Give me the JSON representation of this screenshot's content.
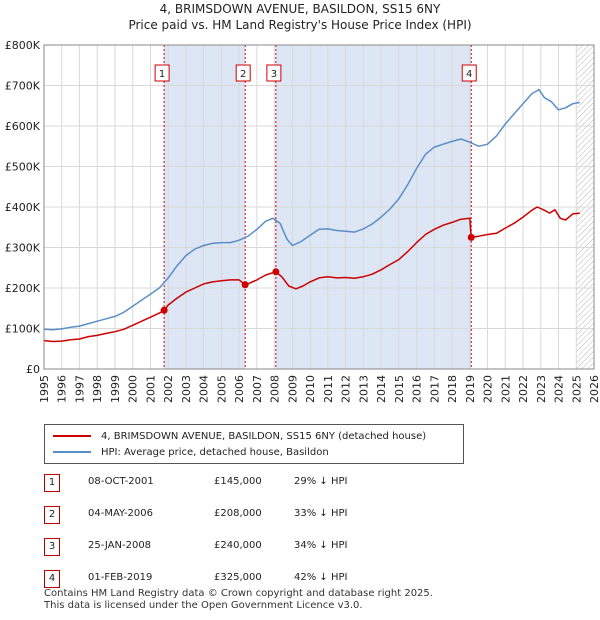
{
  "chart_data": {
    "type": "line",
    "title": "4, BRIMSDOWN AVENUE, BASILDON, SS15 6NY",
    "subtitle": "Price paid vs. HM Land Registry's House Price Index (HPI)",
    "xlabel": "",
    "ylabel": "",
    "xlim": [
      1995,
      2026
    ],
    "ylim": [
      0,
      800000
    ],
    "y_ticks": [
      0,
      100000,
      200000,
      300000,
      400000,
      500000,
      600000,
      700000,
      800000
    ],
    "y_tick_labels": [
      "£0",
      "£100K",
      "£200K",
      "£300K",
      "£400K",
      "£500K",
      "£600K",
      "£700K",
      "£800K"
    ],
    "x_ticks": [
      1995,
      1996,
      1997,
      1998,
      1999,
      2000,
      2001,
      2002,
      2003,
      2004,
      2005,
      2006,
      2007,
      2008,
      2009,
      2010,
      2011,
      2012,
      2013,
      2014,
      2015,
      2016,
      2017,
      2018,
      2019,
      2020,
      2021,
      2022,
      2023,
      2024,
      2025,
      2026
    ],
    "grid": true,
    "hatch_after": 2025.0,
    "series": [
      {
        "name": "4, BRIMSDOWN AVENUE, BASILDON, SS15 6NY (detached house)",
        "color": "#cc0000",
        "points": [
          [
            1995.0,
            70000
          ],
          [
            1995.5,
            68000
          ],
          [
            1996.0,
            69000
          ],
          [
            1996.5,
            72000
          ],
          [
            1997.0,
            74000
          ],
          [
            1997.5,
            80000
          ],
          [
            1998.0,
            83000
          ],
          [
            1998.5,
            88000
          ],
          [
            1999.0,
            92000
          ],
          [
            1999.5,
            98000
          ],
          [
            2000.0,
            108000
          ],
          [
            2000.5,
            118000
          ],
          [
            2001.0,
            128000
          ],
          [
            2001.5,
            138000
          ],
          [
            2001.77,
            145000
          ],
          [
            2002.0,
            158000
          ],
          [
            2002.5,
            175000
          ],
          [
            2003.0,
            190000
          ],
          [
            2003.5,
            200000
          ],
          [
            2004.0,
            210000
          ],
          [
            2004.5,
            215000
          ],
          [
            2005.0,
            218000
          ],
          [
            2005.5,
            220000
          ],
          [
            2006.0,
            220000
          ],
          [
            2006.34,
            208000
          ],
          [
            2006.6,
            212000
          ],
          [
            2007.0,
            220000
          ],
          [
            2007.5,
            232000
          ],
          [
            2008.07,
            240000
          ],
          [
            2008.4,
            228000
          ],
          [
            2008.8,
            205000
          ],
          [
            2009.2,
            198000
          ],
          [
            2009.6,
            205000
          ],
          [
            2010.0,
            215000
          ],
          [
            2010.5,
            225000
          ],
          [
            2011.0,
            228000
          ],
          [
            2011.5,
            225000
          ],
          [
            2012.0,
            226000
          ],
          [
            2012.5,
            224000
          ],
          [
            2013.0,
            228000
          ],
          [
            2013.5,
            234000
          ],
          [
            2014.0,
            245000
          ],
          [
            2014.5,
            258000
          ],
          [
            2015.0,
            270000
          ],
          [
            2015.5,
            290000
          ],
          [
            2016.0,
            312000
          ],
          [
            2016.5,
            332000
          ],
          [
            2017.0,
            345000
          ],
          [
            2017.5,
            355000
          ],
          [
            2018.0,
            362000
          ],
          [
            2018.5,
            370000
          ],
          [
            2019.0,
            372000
          ],
          [
            2019.08,
            325000
          ],
          [
            2019.5,
            328000
          ],
          [
            2020.0,
            332000
          ],
          [
            2020.5,
            335000
          ],
          [
            2021.0,
            348000
          ],
          [
            2021.5,
            360000
          ],
          [
            2022.0,
            375000
          ],
          [
            2022.5,
            392000
          ],
          [
            2022.8,
            400000
          ],
          [
            2023.2,
            392000
          ],
          [
            2023.5,
            385000
          ],
          [
            2023.8,
            393000
          ],
          [
            2024.1,
            372000
          ],
          [
            2024.4,
            368000
          ],
          [
            2024.8,
            383000
          ],
          [
            2025.2,
            385000
          ]
        ]
      },
      {
        "name": "HPI: Average price, detached house, Basildon",
        "color": "#5b8ec9",
        "points": [
          [
            1995.0,
            98000
          ],
          [
            1995.5,
            97000
          ],
          [
            1996.0,
            99000
          ],
          [
            1996.5,
            103000
          ],
          [
            1997.0,
            106000
          ],
          [
            1997.5,
            112000
          ],
          [
            1998.0,
            118000
          ],
          [
            1998.5,
            124000
          ],
          [
            1999.0,
            130000
          ],
          [
            1999.5,
            140000
          ],
          [
            2000.0,
            155000
          ],
          [
            2000.5,
            170000
          ],
          [
            2001.0,
            185000
          ],
          [
            2001.5,
            200000
          ],
          [
            2002.0,
            225000
          ],
          [
            2002.5,
            255000
          ],
          [
            2003.0,
            280000
          ],
          [
            2003.5,
            296000
          ],
          [
            2004.0,
            305000
          ],
          [
            2004.5,
            310000
          ],
          [
            2005.0,
            312000
          ],
          [
            2005.5,
            312000
          ],
          [
            2006.0,
            318000
          ],
          [
            2006.5,
            328000
          ],
          [
            2007.0,
            345000
          ],
          [
            2007.5,
            365000
          ],
          [
            2007.9,
            372000
          ],
          [
            2008.3,
            360000
          ],
          [
            2008.7,
            320000
          ],
          [
            2009.0,
            305000
          ],
          [
            2009.5,
            315000
          ],
          [
            2010.0,
            330000
          ],
          [
            2010.5,
            345000
          ],
          [
            2011.0,
            346000
          ],
          [
            2011.5,
            342000
          ],
          [
            2012.0,
            340000
          ],
          [
            2012.5,
            338000
          ],
          [
            2013.0,
            346000
          ],
          [
            2013.5,
            358000
          ],
          [
            2014.0,
            375000
          ],
          [
            2014.5,
            395000
          ],
          [
            2015.0,
            420000
          ],
          [
            2015.5,
            455000
          ],
          [
            2016.0,
            495000
          ],
          [
            2016.5,
            530000
          ],
          [
            2017.0,
            548000
          ],
          [
            2017.5,
            555000
          ],
          [
            2018.0,
            562000
          ],
          [
            2018.5,
            568000
          ],
          [
            2019.0,
            560000
          ],
          [
            2019.5,
            550000
          ],
          [
            2020.0,
            555000
          ],
          [
            2020.5,
            575000
          ],
          [
            2021.0,
            605000
          ],
          [
            2021.5,
            630000
          ],
          [
            2022.0,
            655000
          ],
          [
            2022.5,
            680000
          ],
          [
            2022.9,
            690000
          ],
          [
            2023.2,
            670000
          ],
          [
            2023.6,
            660000
          ],
          [
            2024.0,
            640000
          ],
          [
            2024.4,
            645000
          ],
          [
            2024.8,
            655000
          ],
          [
            2025.2,
            658000
          ]
        ]
      }
    ],
    "markers": [
      {
        "label": "1",
        "x": 2001.77,
        "y": 145000
      },
      {
        "label": "2",
        "x": 2006.34,
        "y": 208000
      },
      {
        "label": "3",
        "x": 2008.07,
        "y": 240000
      },
      {
        "label": "4",
        "x": 2019.08,
        "y": 325000
      }
    ],
    "shaded_ranges": [
      [
        2001.77,
        2006.34
      ],
      [
        2008.07,
        2019.08
      ]
    ]
  },
  "legend": {
    "property": "4, BRIMSDOWN AVENUE, BASILDON, SS15 6NY (detached house)",
    "hpi": "HPI: Average price, detached house, Basildon"
  },
  "transactions": [
    {
      "num": "1",
      "date": "08-OCT-2001",
      "price": "£145,000",
      "hpi": "29% ↓ HPI"
    },
    {
      "num": "2",
      "date": "04-MAY-2006",
      "price": "£208,000",
      "hpi": "33% ↓ HPI"
    },
    {
      "num": "3",
      "date": "25-JAN-2008",
      "price": "£240,000",
      "hpi": "34% ↓ HPI"
    },
    {
      "num": "4",
      "date": "01-FEB-2019",
      "price": "£325,000",
      "hpi": "42% ↓ HPI"
    }
  ],
  "footer": {
    "line1": "Contains HM Land Registry data © Crown copyright and database right 2025.",
    "line2": "This data is licensed under the Open Government Licence v3.0."
  },
  "colors": {
    "property": "#cc0000",
    "hpi": "#5b8ec9",
    "shade": "#dde6f4",
    "grid": "#d9d9d9"
  }
}
